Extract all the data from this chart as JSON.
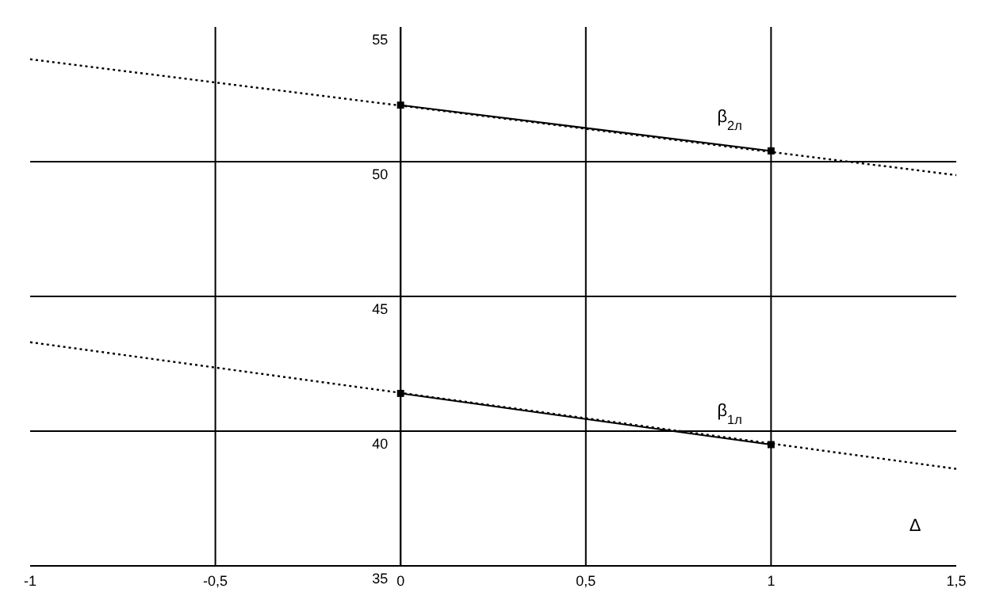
{
  "chart_data": {
    "type": "line",
    "xlim": [
      -1,
      1.5
    ],
    "ylim": [
      35,
      55
    ],
    "xticks": [
      {
        "value": -1,
        "label": "-1"
      },
      {
        "value": -0.5,
        "label": "-0,5"
      },
      {
        "value": 0,
        "label": "0"
      },
      {
        "value": 0.5,
        "label": "0,5"
      },
      {
        "value": 1,
        "label": "1"
      },
      {
        "value": 1.5,
        "label": "1,5"
      }
    ],
    "yticks": [
      35,
      40,
      45,
      50,
      55
    ],
    "grid": true,
    "series": [
      {
        "x": [
          -1,
          1.5
        ],
        "values": [
          53.8,
          49.5
        ],
        "color": "#000000",
        "line_style": "dotted",
        "marker": "none"
      },
      {
        "name": "β$_{2л}$",
        "x": [
          0,
          1
        ],
        "values": [
          52.1,
          50.4
        ],
        "color": "#000000",
        "line_style": "solid",
        "marker": "square"
      },
      {
        "x": [
          -1,
          1.5
        ],
        "values": [
          43.3,
          38.6
        ],
        "color": "#000000",
        "line_style": "dotted",
        "marker": "none"
      },
      {
        "name": "β$_{1л}$",
        "x": [
          0,
          1
        ],
        "values": [
          41.4,
          39.5
        ],
        "color": "#000000",
        "line_style": "solid",
        "marker": "square"
      }
    ],
    "annotations": [
      "Δ"
    ]
  }
}
